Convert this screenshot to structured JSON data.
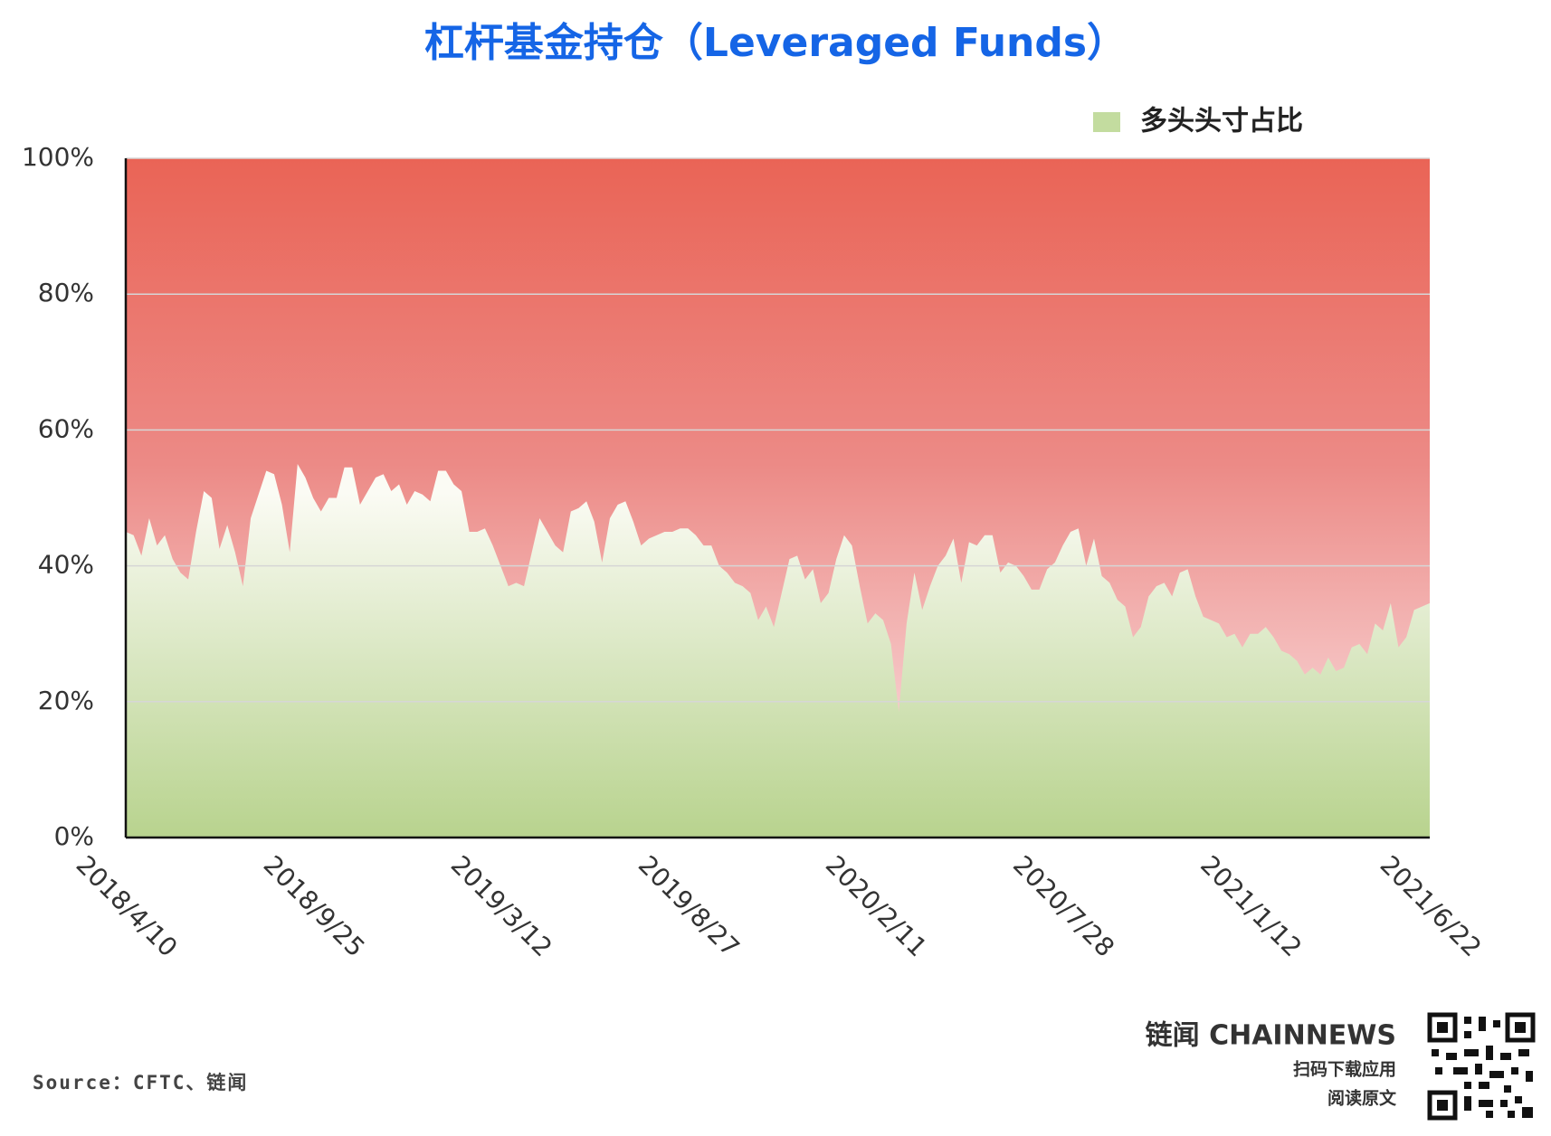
{
  "chart_data": {
    "type": "area",
    "title": "杠杆基金持仓（Leveraged Funds）",
    "source": "Source：CFTC、链闻",
    "brand": {
      "name": "链闻 CHAINNEWS",
      "line1": "扫码下载应用",
      "line2": "阅读原文"
    },
    "categories": [
      "2018/4/10",
      null,
      null,
      null,
      null,
      null,
      null,
      null,
      null,
      null,
      null,
      null,
      null,
      null,
      null,
      null,
      null,
      null,
      null,
      null,
      null,
      null,
      null,
      null,
      "2018/9/25",
      null,
      null,
      null,
      null,
      null,
      null,
      null,
      null,
      null,
      null,
      null,
      null,
      null,
      null,
      null,
      null,
      null,
      null,
      null,
      null,
      null,
      null,
      null,
      "2019/3/12",
      null,
      null,
      null,
      null,
      null,
      null,
      null,
      null,
      null,
      null,
      null,
      null,
      null,
      null,
      null,
      null,
      null,
      null,
      null,
      null,
      null,
      null,
      null,
      "2019/8/27",
      null,
      null,
      null,
      null,
      null,
      null,
      null,
      null,
      null,
      null,
      null,
      null,
      null,
      null,
      null,
      null,
      null,
      null,
      null,
      null,
      null,
      null,
      null,
      "2020/2/11",
      null,
      null,
      null,
      null,
      null,
      null,
      null,
      null,
      null,
      null,
      null,
      null,
      null,
      null,
      null,
      null,
      null,
      null,
      null,
      null,
      null,
      null,
      null,
      "2020/7/28",
      null,
      null,
      null,
      null,
      null,
      null,
      null,
      null,
      null,
      null,
      null,
      null,
      null,
      null,
      null,
      null,
      null,
      null,
      null,
      null,
      null,
      null,
      null,
      "2021/1/12",
      null,
      null,
      null,
      null,
      null,
      null,
      null,
      null,
      null,
      null,
      null,
      null,
      null,
      null,
      null,
      null,
      null,
      null,
      null,
      null,
      null,
      null,
      "2021/6/22"
    ],
    "series": [
      {
        "name": "多头头寸占比",
        "color": "#c3dc9f",
        "values": [
          45,
          44.5,
          41.5,
          47,
          43,
          44.5,
          41,
          39,
          38,
          45,
          51,
          50,
          42.5,
          46,
          42,
          37,
          47,
          50.5,
          54,
          53.5,
          49,
          42,
          55,
          53,
          50,
          48,
          50,
          50,
          54.5,
          54.5,
          49,
          51,
          53,
          53.5,
          51,
          52,
          49,
          51,
          50.5,
          49.5,
          54,
          54,
          52,
          51,
          45,
          45,
          45.5,
          43,
          40,
          37,
          37.5,
          37,
          42,
          47,
          45,
          43,
          42,
          48,
          48.5,
          49.5,
          46.5,
          40.5,
          47,
          49,
          49.5,
          46.5,
          43,
          44,
          44.5,
          45,
          45,
          45.5,
          45.5,
          44.5,
          43,
          43,
          40,
          39,
          37.5,
          37,
          36,
          32,
          34,
          31,
          36,
          41,
          41.5,
          38,
          39.5,
          34.5,
          36,
          41,
          44.5,
          43,
          37,
          31.5,
          33,
          32,
          28.5,
          18.5,
          31.5,
          39,
          33.5,
          37,
          40,
          41.5,
          44,
          37.5,
          43.5,
          43,
          44.5,
          44.5,
          39,
          40.5,
          40,
          38.5,
          36.5,
          36.5,
          39.5,
          40.5,
          43,
          45,
          45.5,
          40,
          44,
          38.5,
          37.5,
          35,
          34,
          29.5,
          31,
          35.5,
          37,
          37.5,
          35.5,
          39,
          39.5,
          35.5,
          32.5,
          32,
          31.5,
          29.5,
          30,
          28,
          30,
          30,
          31,
          29.5,
          27.5,
          27,
          26,
          24,
          25,
          24,
          26.5,
          24.5,
          25,
          28,
          28.5,
          27,
          31.5,
          30.5,
          34.5,
          28,
          29.5,
          33.5,
          34,
          34.5
        ]
      }
    ],
    "ylim": [
      0,
      100
    ],
    "yticks": [
      {
        "value": 0,
        "label": "0%"
      },
      {
        "value": 20,
        "label": "20%"
      },
      {
        "value": 40,
        "label": "40%"
      },
      {
        "value": 60,
        "label": "60%"
      },
      {
        "value": 80,
        "label": "80%"
      },
      {
        "value": 100,
        "label": "100%"
      }
    ],
    "grid": true
  }
}
